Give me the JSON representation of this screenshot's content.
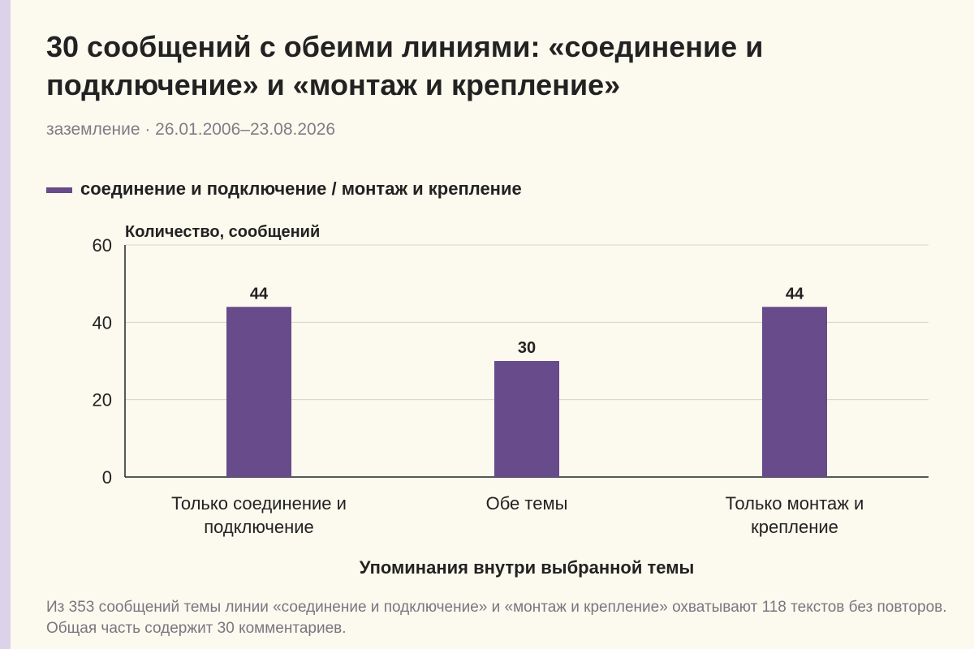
{
  "title": "30 сообщений с обеими линиями: «соединение и подключение» и «монтаж и крепление»",
  "subtitle": "заземление · 26.01.2006–23.08.2026",
  "legend": {
    "label": "соединение и подключение / монтаж и крепление",
    "color": "#674b8a"
  },
  "caption": "Из 353 сообщений темы линии «соединение и подключение» и «монтаж и крепление» охватывают 118 текстов без повторов. Общая часть содержит 30 комментариев.",
  "chart_data": {
    "type": "bar",
    "categories": [
      [
        "Только соединение и",
        "подключение"
      ],
      [
        "Обе темы"
      ],
      [
        "Только монтаж и",
        "крепление"
      ]
    ],
    "values": [
      44,
      30,
      44
    ],
    "series": [
      {
        "name": "соединение и подключение / монтаж и крепление",
        "values": [
          44,
          30,
          44
        ]
      }
    ],
    "ylabel": "Количество, сообщений",
    "xlabel": "Упоминания внутри выбранной темы",
    "ylim": [
      0,
      60
    ],
    "yticks": [
      0,
      20,
      40,
      60
    ],
    "grid": true,
    "legend_position": "top-left",
    "bar_color": "#674b8a"
  }
}
